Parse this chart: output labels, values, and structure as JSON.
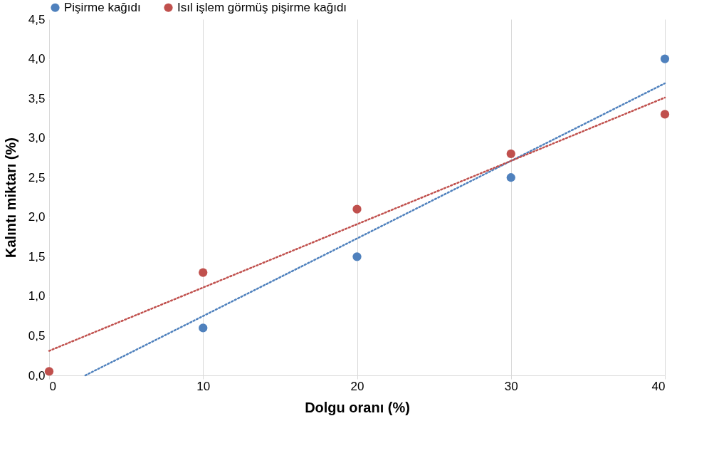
{
  "chart_data": {
    "type": "scatter",
    "xlabel": "Dolgu oranı (%)",
    "ylabel": "Kalıntı miktarı (%)",
    "xlim": [
      0,
      40
    ],
    "ylim": [
      0,
      4.5
    ],
    "xticks": [
      0,
      10,
      20,
      30,
      40
    ],
    "yticks": [
      {
        "value": 0,
        "label": "0,0"
      },
      {
        "value": 0.5,
        "label": "0,5"
      },
      {
        "value": 1,
        "label": "1,0"
      },
      {
        "value": 1.5,
        "label": "1,5"
      },
      {
        "value": 2,
        "label": "2,0"
      },
      {
        "value": 2.5,
        "label": "2,5"
      },
      {
        "value": 3,
        "label": "3,0"
      },
      {
        "value": 3.5,
        "label": "3,5"
      },
      {
        "value": 4,
        "label": "4,0"
      },
      {
        "value": 4.5,
        "label": "4,5"
      }
    ],
    "grid": "x",
    "legend": "top",
    "marker": "circle",
    "x": [
      0,
      10,
      20,
      30,
      40
    ],
    "series": [
      {
        "name": "Pişirme kağıdı",
        "color": "#4f81bd",
        "values": [
          null,
          0.6,
          1.5,
          2.5,
          4.0
        ]
      },
      {
        "name": "Isıl işlem görmüş pişirme kağıdı",
        "color": "#c0504d",
        "values": [
          0.05,
          1.3,
          2.1,
          2.8,
          3.3
        ]
      },
      {
        "type": "line",
        "color": "#4f81bd",
        "line_style": "dotted",
        "marker": "none",
        "x": [
          2.35,
          40
        ],
        "values": [
          0,
          3.69
        ]
      },
      {
        "type": "line",
        "color": "#c0504d",
        "line_style": "dotted",
        "marker": "none",
        "x": [
          0,
          40
        ],
        "values": [
          0.31,
          3.51
        ]
      }
    ]
  }
}
